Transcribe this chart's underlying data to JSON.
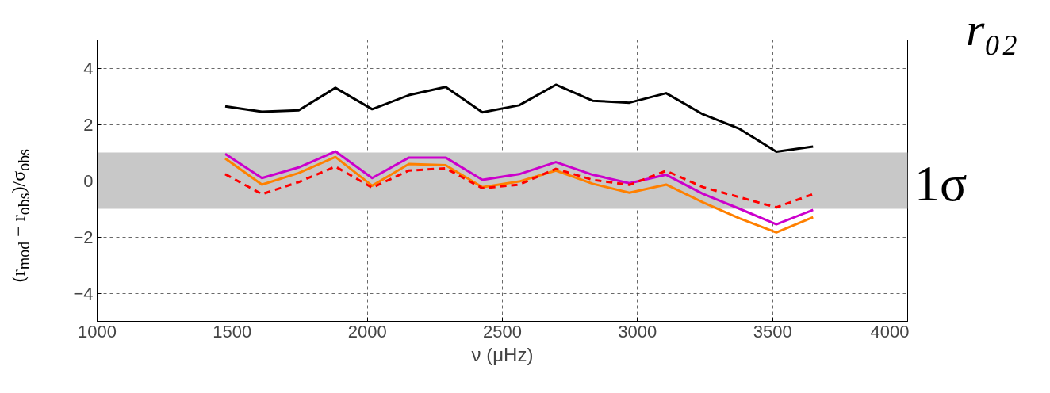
{
  "chart_data": {
    "type": "line",
    "xlabel": "ν (μHz)",
    "ylabel": "(r$_{mod}$ − r$_{obs}$)/σ$_{obs}$",
    "x": [
      1474,
      1610,
      1746,
      1882,
      2018,
      2154,
      2290,
      2426,
      2562,
      2698,
      2834,
      2970,
      3106,
      3242,
      3378,
      3514,
      3650
    ],
    "series": [
      {
        "color": "#000000",
        "line_style": "solid",
        "values": [
          2.64,
          2.45,
          2.5,
          3.3,
          2.54,
          3.04,
          3.33,
          2.43,
          2.68,
          3.41,
          2.84,
          2.77,
          3.11,
          2.36,
          1.84,
          1.03,
          1.21
        ]
      },
      {
        "color": "#cc00cc",
        "line_style": "solid",
        "values": [
          0.95,
          0.09,
          0.47,
          1.04,
          0.09,
          0.82,
          0.82,
          0.03,
          0.23,
          0.66,
          0.21,
          -0.09,
          0.21,
          -0.47,
          -1.0,
          -1.55,
          -1.04
        ]
      },
      {
        "color": "#ff8000",
        "line_style": "solid",
        "values": [
          0.79,
          -0.14,
          0.27,
          0.84,
          -0.18,
          0.59,
          0.55,
          -0.23,
          -0.03,
          0.36,
          -0.11,
          -0.43,
          -0.14,
          -0.77,
          -1.34,
          -1.84,
          -1.3
        ]
      },
      {
        "color": "#ff0000",
        "line_style": "dashed",
        "values": [
          0.23,
          -0.48,
          -0.05,
          0.5,
          -0.25,
          0.36,
          0.44,
          -0.27,
          -0.14,
          0.42,
          0.03,
          -0.15,
          0.35,
          -0.23,
          -0.59,
          -0.95,
          -0.48
        ]
      }
    ],
    "bands": [
      {
        "axis": "y",
        "from": -1,
        "to": 1,
        "label": "1σ",
        "color": "#c8c8c8"
      }
    ],
    "annotations": [
      "r₀₂"
    ],
    "xlim": [
      1000,
      4000
    ],
    "xticks": [
      1000,
      1500,
      2000,
      2500,
      3000,
      3500,
      4000
    ],
    "ylim": [
      -5,
      5
    ],
    "yticks": [
      -4,
      -2,
      0,
      2,
      4
    ],
    "grid": true,
    "marker": "none"
  }
}
